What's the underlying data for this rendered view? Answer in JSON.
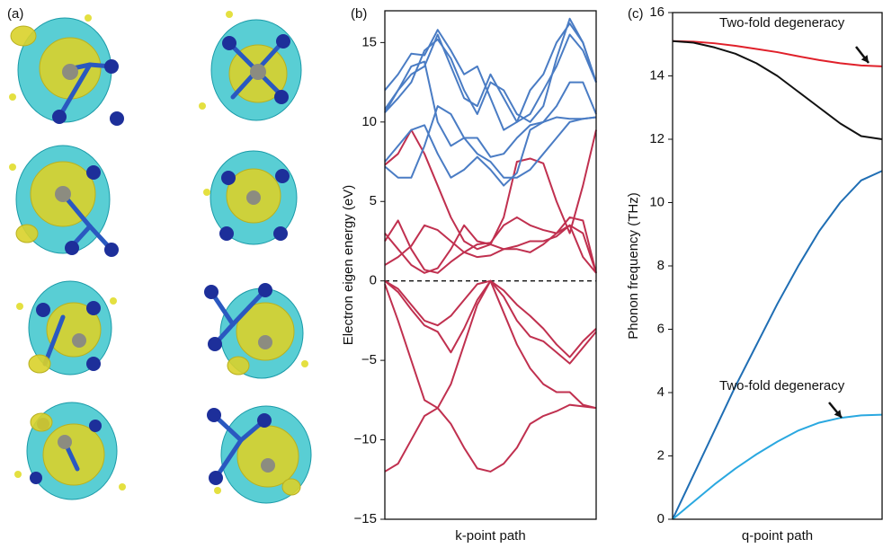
{
  "image_panel": {
    "label": "(a)"
  },
  "chart_data": [
    {
      "type": "line",
      "panel_label": "(b)",
      "x_label": "k-point path",
      "y_label": "Electron eigen energy (eV)",
      "x": [
        0,
        1,
        2,
        3,
        4,
        5,
        6,
        7,
        8,
        9,
        10,
        11,
        12,
        13,
        14,
        15,
        16
      ],
      "xlim": [
        0,
        16
      ],
      "ylim": [
        -15,
        17
      ],
      "yticks": [
        {
          "value": -15,
          "label": "−15"
        },
        {
          "value": -10,
          "label": "−10"
        },
        {
          "value": -5,
          "label": "−5"
        },
        0,
        5,
        10,
        15
      ],
      "hline": 0,
      "series": [
        {
          "color": "#c0304f",
          "values": [
            0,
            -0.5,
            -1.5,
            -2.5,
            -2.8,
            -2.2,
            -1.2,
            -0.2,
            0,
            -0.6,
            -1.5,
            -2.2,
            -3,
            -4,
            -4.8,
            -3.8,
            -3
          ]
        },
        {
          "color": "#c0304f",
          "values": [
            0,
            -0.7,
            -1.8,
            -2.8,
            -3.2,
            -4.5,
            -3,
            -1.2,
            0,
            -1,
            -2.5,
            -3.5,
            -3.8,
            -4.5,
            -5.2,
            -4.2,
            -3.2
          ]
        },
        {
          "color": "#c0304f",
          "values": [
            -0.2,
            -2.5,
            -5,
            -7.5,
            -8,
            -6.5,
            -4,
            -1.5,
            0,
            -2,
            -4,
            -5.5,
            -6.5,
            -7,
            -7,
            -7.8,
            -8
          ]
        },
        {
          "color": "#c0304f",
          "values": [
            -12,
            -11.5,
            -10,
            -8.5,
            -8,
            -9,
            -10.5,
            -11.8,
            -12,
            -11.5,
            -10.5,
            -9,
            -8.5,
            -8.2,
            -7.8,
            -7.9,
            -8
          ]
        },
        {
          "color": "#c0304f",
          "values": [
            2.5,
            3.8,
            2,
            0.7,
            0.5,
            1.2,
            1.8,
            2.3,
            2.4,
            3.5,
            4,
            3.5,
            3.2,
            3,
            3.5,
            3,
            0.5
          ]
        },
        {
          "color": "#c0304f",
          "values": [
            3,
            2,
            1,
            0.5,
            0.8,
            2,
            3.5,
            2.5,
            2.3,
            2,
            2,
            1.8,
            2.3,
            3,
            4,
            3.8,
            0.5
          ]
        },
        {
          "color": "#c0304f",
          "values": [
            1,
            1.5,
            2.2,
            3.5,
            3.2,
            2.5,
            1.8,
            1.5,
            1.6,
            2,
            2.2,
            2.5,
            2.5,
            2.8,
            3.5,
            1.5,
            0.5
          ]
        },
        {
          "color": "#c0304f",
          "values": [
            7.3,
            8,
            9.5,
            8,
            6,
            4,
            2.5,
            2,
            2.3,
            4,
            7.5,
            7.7,
            7.4,
            5,
            3,
            6,
            9.5
          ]
        },
        {
          "color": "#4a7cc4",
          "values": [
            7.5,
            8.5,
            9.5,
            9.8,
            8,
            6.5,
            7,
            7.8,
            7,
            6,
            6.8,
            9.5,
            10,
            10.3,
            10.2,
            10.2,
            10.3
          ]
        },
        {
          "color": "#4a7cc4",
          "values": [
            7.2,
            6.5,
            6.5,
            8.5,
            11,
            10.5,
            9,
            8,
            7.5,
            6.5,
            6.5,
            7,
            8,
            9,
            10,
            10.2,
            10.3
          ]
        },
        {
          "color": "#4a7cc4",
          "values": [
            10.6,
            12,
            13.5,
            13.8,
            10,
            8.5,
            9,
            9,
            7.8,
            8,
            9,
            9.8,
            10,
            11,
            12.5,
            12.5,
            10.5
          ]
        },
        {
          "color": "#4a7cc4",
          "values": [
            10.6,
            11.5,
            12.5,
            14.5,
            15.2,
            14,
            12,
            10.5,
            12.5,
            12,
            10.5,
            10,
            11,
            14,
            16.5,
            15,
            12.5
          ]
        },
        {
          "color": "#4a7cc4",
          "values": [
            10.8,
            12,
            13,
            13.5,
            15.5,
            13.5,
            11.5,
            11,
            13,
            11.5,
            10,
            10.5,
            12,
            13.5,
            15.5,
            14.5,
            12.5
          ]
        },
        {
          "color": "#4a7cc4",
          "values": [
            12,
            13,
            14.3,
            14.2,
            15.8,
            14.5,
            13,
            13.5,
            11.5,
            9.5,
            10,
            12,
            13,
            15,
            16.2,
            15,
            12.5
          ]
        }
      ]
    },
    {
      "type": "line",
      "panel_label": "(c)",
      "x_label": "q-point path",
      "y_label": "Phonon frequency (THz)",
      "x": [
        0,
        1,
        2,
        3,
        4,
        5,
        6,
        7,
        8,
        9,
        10
      ],
      "xlim": [
        0,
        10
      ],
      "ylim": [
        0,
        16
      ],
      "yticks": [
        0,
        2,
        4,
        6,
        8,
        10,
        12,
        14,
        16
      ],
      "annotations": [
        "Two-fold degeneracy",
        "Two-fold degeneracy"
      ],
      "series": [
        {
          "color": "#e0202a",
          "values": [
            15.1,
            15.08,
            15.03,
            14.95,
            14.85,
            14.75,
            14.62,
            14.5,
            14.4,
            14.33,
            14.3
          ]
        },
        {
          "color": "#111111",
          "values": [
            15.1,
            15.05,
            14.9,
            14.7,
            14.4,
            14.0,
            13.5,
            13.0,
            12.5,
            12.1,
            12.0
          ]
        },
        {
          "color": "#1f6eb4",
          "values": [
            0,
            1.4,
            2.8,
            4.2,
            5.5,
            6.8,
            8.0,
            9.1,
            10.0,
            10.7,
            11.0
          ]
        },
        {
          "color": "#2aa8e0",
          "values": [
            0,
            0.55,
            1.1,
            1.6,
            2.05,
            2.45,
            2.8,
            3.05,
            3.2,
            3.28,
            3.3
          ]
        }
      ]
    }
  ]
}
